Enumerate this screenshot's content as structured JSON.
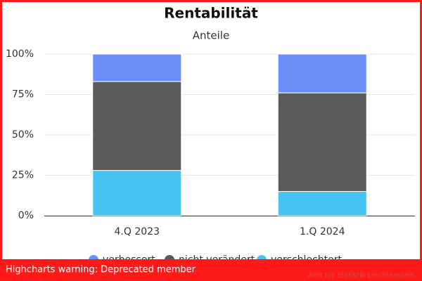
{
  "chart_data": {
    "type": "stacked-bar",
    "title": "Rentabilität",
    "subtitle": "Anteile",
    "categories": [
      "4.Q 2023",
      "1.Q 2024"
    ],
    "series": [
      {
        "name": "verbessert",
        "color": "#6b8ff8",
        "values": [
          17,
          24
        ]
      },
      {
        "name": "nicht verändert",
        "color": "#5a5a5a",
        "values": [
          55,
          61
        ]
      },
      {
        "name": "verschlechtert",
        "color": "#47c3f2",
        "values": [
          28,
          15
        ]
      }
    ],
    "ylim": [
      0,
      100
    ],
    "yticks": [
      {
        "value": 0,
        "label": "0%"
      },
      {
        "value": 25,
        "label": "25%"
      },
      {
        "value": 50,
        "label": "50%"
      },
      {
        "value": 75,
        "label": "75%"
      },
      {
        "value": 100,
        "label": "100%"
      }
    ],
    "grid": true,
    "credits": "Amt für Statistik Liechtenstein"
  },
  "warning": "Highcharts warning: Deprecated member"
}
